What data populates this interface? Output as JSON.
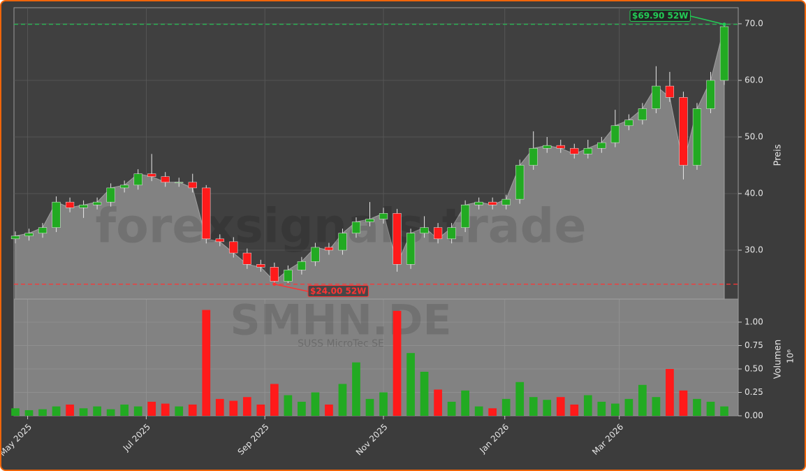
{
  "chart_data": {
    "type": "candlestick",
    "watermark": "forexsignals.trade",
    "symbol": "SMHN.DE",
    "company": "SUSS MicroTec SE",
    "y_label": "Preis",
    "y2_label": "Volumen",
    "y2_offset_label": "10⁶",
    "xlim": [
      0,
      52
    ],
    "xticks": [
      {
        "value": 0.9,
        "label": "May 2025"
      },
      {
        "value": 9.6,
        "label": "Jul 2025"
      },
      {
        "value": 18.3,
        "label": "Sep 2025"
      },
      {
        "value": 27,
        "label": "Nov 2025"
      },
      {
        "value": 35.9,
        "label": "Jan 2026"
      },
      {
        "value": 44.3,
        "label": "Mar 2026"
      }
    ],
    "ylim": [
      21.36,
      72.84
    ],
    "yticks": [
      {
        "value": 30,
        "label": "30.0"
      },
      {
        "value": 40,
        "label": "40.0"
      },
      {
        "value": 50,
        "label": "50.0"
      },
      {
        "value": 60,
        "label": "60.0"
      },
      {
        "value": 70,
        "label": "70.0"
      }
    ],
    "y2lim": [
      0,
      1.246
    ],
    "y2ticks": [
      {
        "value": 0,
        "label": "0.00"
      },
      {
        "value": 0.25,
        "label": "0.25"
      },
      {
        "value": 0.5,
        "label": "0.50"
      },
      {
        "value": 0.75,
        "label": "0.75"
      },
      {
        "value": 1,
        "label": "1.00"
      }
    ],
    "grid": true,
    "up_color": "#22aa22",
    "down_color": "#ff1a1a",
    "area_color": "#828282",
    "high_line": {
      "value": 69.9,
      "label": "$69.90 52W",
      "color": "#22cc55"
    },
    "low_line": {
      "value": 24.0,
      "label": "$24.00 52W",
      "color": "#ff3333"
    },
    "open": [
      32,
      32.5,
      33,
      34,
      38.5,
      37.5,
      38,
      38.5,
      41,
      41.5,
      43.5,
      43,
      42,
      42,
      41,
      32,
      31.5,
      29.5,
      27.5,
      27,
      24.5,
      26.5,
      28,
      30.5,
      30,
      33,
      35,
      35.5,
      36.5,
      27.5,
      33,
      34,
      32,
      34,
      38,
      38.5,
      38,
      39,
      45,
      48,
      48.5,
      48,
      47,
      48,
      49,
      52,
      53,
      55,
      59,
      57,
      45,
      55,
      60
    ],
    "high": [
      33.3,
      33.8,
      34.8,
      39.5,
      39.3,
      38.8,
      39.3,
      41.8,
      42.3,
      44.3,
      47,
      43.8,
      42.8,
      43.5,
      41.5,
      32.8,
      32.3,
      30.3,
      28.3,
      27.8,
      27.3,
      28.8,
      31.3,
      31.3,
      33.8,
      35.8,
      38.5,
      37.5,
      37.3,
      33.8,
      36,
      34.8,
      34.8,
      38.8,
      39.3,
      39.3,
      39.8,
      46,
      51,
      50,
      49.5,
      48.8,
      49.5,
      50,
      54.8,
      54,
      56,
      62.5,
      61.5,
      58,
      56,
      61.5,
      69.9
    ],
    "low": [
      31.2,
      31.7,
      32.2,
      33.2,
      36.7,
      35.7,
      37.2,
      37.7,
      40.2,
      40.7,
      42.2,
      41.2,
      41.2,
      40.2,
      31.2,
      30.7,
      28.7,
      26.7,
      26.2,
      24.0,
      24.2,
      25.7,
      27.2,
      29.2,
      29.2,
      32.2,
      34.2,
      34.7,
      26.2,
      26.7,
      32.2,
      31.2,
      31.2,
      33.2,
      37.2,
      37.2,
      37.2,
      38.2,
      44.2,
      47.2,
      47.2,
      46.2,
      46.2,
      47.2,
      48.2,
      51.2,
      52.2,
      54.2,
      56.2,
      42.5,
      44.2,
      54.2,
      59.2
    ],
    "close": [
      32.5,
      33,
      34,
      38.5,
      37.5,
      38,
      38.5,
      41,
      41.5,
      43.5,
      43,
      42,
      42,
      41,
      32,
      31.5,
      29.5,
      27.5,
      27,
      24.5,
      26.5,
      28,
      30.5,
      30,
      33,
      35,
      35.5,
      36.5,
      27.5,
      33,
      34,
      32,
      34,
      38,
      38.5,
      38,
      39,
      45,
      48,
      48.5,
      48,
      47,
      48,
      49,
      52,
      53,
      55,
      59,
      57,
      45,
      55,
      60,
      69.5
    ],
    "volume": [
      0.08,
      0.06,
      0.07,
      0.1,
      0.12,
      0.08,
      0.1,
      0.07,
      0.12,
      0.1,
      0.15,
      0.13,
      0.1,
      0.12,
      1.13,
      0.18,
      0.16,
      0.2,
      0.12,
      0.34,
      0.22,
      0.15,
      0.25,
      0.12,
      0.34,
      0.57,
      0.18,
      0.25,
      1.12,
      0.67,
      0.47,
      0.28,
      0.15,
      0.27,
      0.1,
      0.08,
      0.18,
      0.36,
      0.2,
      0.17,
      0.2,
      0.12,
      0.22,
      0.15,
      0.13,
      0.18,
      0.33,
      0.2,
      0.5,
      0.27,
      0.18,
      0.15,
      0.1
    ]
  }
}
